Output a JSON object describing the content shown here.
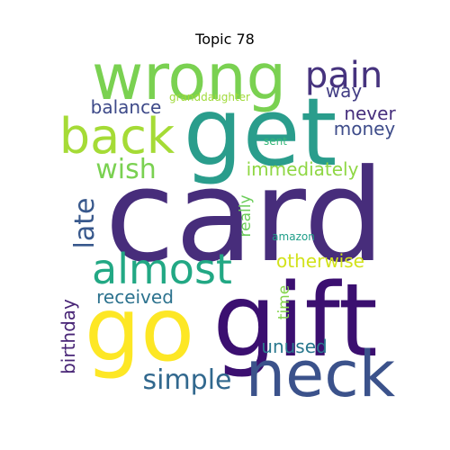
{
  "title": "Topic 78",
  "words": [
    {
      "text": "card",
      "color": "#472d7b"
    },
    {
      "text": "gift",
      "color": "#3b0f70"
    },
    {
      "text": "get",
      "color": "#2a9d8c"
    },
    {
      "text": "wrong",
      "color": "#7ad151"
    },
    {
      "text": "neck",
      "color": "#3b528b"
    },
    {
      "text": "go",
      "color": "#fde725"
    },
    {
      "text": "back",
      "color": "#a5db36"
    },
    {
      "text": "almost",
      "color": "#22a884"
    },
    {
      "text": "pain",
      "color": "#46337e"
    },
    {
      "text": "wish",
      "color": "#7ad151"
    },
    {
      "text": "simple",
      "color": "#31688e"
    },
    {
      "text": "late",
      "color": "#38588c"
    },
    {
      "text": "received",
      "color": "#2c728e"
    },
    {
      "text": "balance",
      "color": "#3e4a89"
    },
    {
      "text": "never",
      "color": "#472f7d"
    },
    {
      "text": "money",
      "color": "#3e4c8a"
    },
    {
      "text": "immediately",
      "color": "#8fd744"
    },
    {
      "text": "way",
      "color": "#433e85"
    },
    {
      "text": "otherwise",
      "color": "#d2e21b"
    },
    {
      "text": "unused",
      "color": "#2a788e"
    },
    {
      "text": "birthday",
      "color": "#482576"
    },
    {
      "text": "really",
      "color": "#6ccd5a"
    },
    {
      "text": "time",
      "color": "#84d44b"
    },
    {
      "text": "granddaughter",
      "color": "#a0da39"
    },
    {
      "text": "amazon",
      "color": "#1f9e89"
    },
    {
      "text": "sent",
      "color": "#35b779"
    }
  ]
}
